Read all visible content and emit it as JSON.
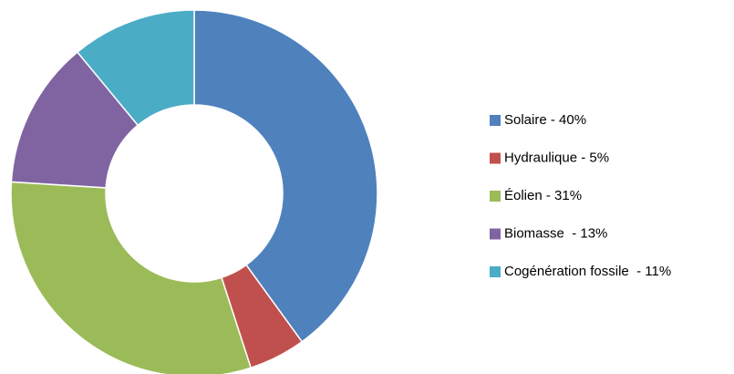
{
  "chart_data": {
    "type": "donut",
    "categories": [
      "Solaire - 40%",
      "Hydraulique - 5%",
      "Éolien - 31%",
      "Biomasse  - 13%",
      "Cogénération fossile  - 11%"
    ],
    "values": [
      40,
      5,
      31,
      13,
      11
    ],
    "colors": [
      "#4f81bd",
      "#c0504d",
      "#9bbb59",
      "#8064a2",
      "#4bacc6"
    ],
    "legend": "right"
  }
}
